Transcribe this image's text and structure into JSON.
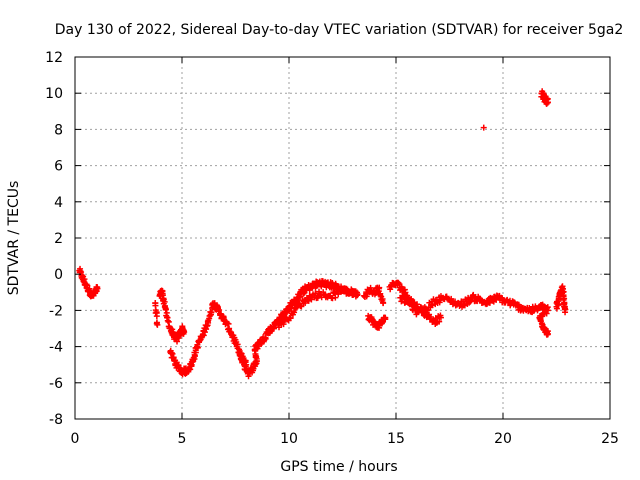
{
  "chart_data": {
    "type": "scatter",
    "title": "Day 130 of 2022, Sidereal Day-to-day VTEC variation (SDTVAR) for receiver 5ga2",
    "xlabel": "GPS time / hours",
    "ylabel": "SDTVAR / TECUs",
    "xlim": [
      0,
      25
    ],
    "ylim": [
      -8,
      12
    ],
    "x_ticks": [
      0,
      5,
      10,
      15,
      20,
      25
    ],
    "y_ticks": [
      -8,
      -6,
      -4,
      -2,
      0,
      2,
      4,
      6,
      8,
      10,
      12
    ],
    "grid": true,
    "marker": "+",
    "series_color": "#ff0000",
    "trace_points": [
      [
        0.2,
        0.2
      ],
      [
        0.35,
        -0.2
      ],
      [
        0.5,
        -0.6
      ],
      [
        0.65,
        -0.9
      ],
      [
        0.8,
        -1.2
      ],
      [
        0.95,
        -1.0
      ],
      [
        1.05,
        -0.8
      ],
      [
        3.75,
        -1.6
      ],
      [
        3.85,
        -2.8
      ],
      [
        3.95,
        -1.2
      ],
      [
        4.05,
        -0.9
      ],
      [
        4.15,
        -1.4
      ],
      [
        4.3,
        -2.4
      ],
      [
        4.45,
        -3.0
      ],
      [
        4.6,
        -3.4
      ],
      [
        4.75,
        -3.6
      ],
      [
        4.9,
        -3.3
      ],
      [
        5.0,
        -3.0
      ],
      [
        5.1,
        -3.2
      ],
      [
        4.45,
        -4.3
      ],
      [
        4.65,
        -4.8
      ],
      [
        4.85,
        -5.2
      ],
      [
        5.05,
        -5.4
      ],
      [
        5.25,
        -5.3
      ],
      [
        5.45,
        -5.0
      ],
      [
        5.55,
        -4.6
      ],
      [
        5.7,
        -4.0
      ],
      [
        5.9,
        -3.5
      ],
      [
        6.1,
        -3.0
      ],
      [
        6.3,
        -2.3
      ],
      [
        6.45,
        -1.6
      ],
      [
        6.6,
        -1.8
      ],
      [
        6.8,
        -2.2
      ],
      [
        7.0,
        -2.6
      ],
      [
        7.2,
        -3.0
      ],
      [
        7.4,
        -3.5
      ],
      [
        7.6,
        -4.1
      ],
      [
        7.8,
        -4.6
      ],
      [
        8.0,
        -5.0
      ],
      [
        7.7,
        -4.5
      ],
      [
        7.9,
        -5.0
      ],
      [
        8.1,
        -5.5
      ],
      [
        8.3,
        -5.2
      ],
      [
        8.5,
        -4.8
      ],
      [
        8.4,
        -4.2
      ],
      [
        8.6,
        -3.8
      ],
      [
        8.8,
        -3.6
      ],
      [
        9.0,
        -3.2
      ],
      [
        9.2,
        -3.0
      ],
      [
        9.4,
        -2.7
      ],
      [
        9.6,
        -2.4
      ],
      [
        9.8,
        -2.2
      ],
      [
        10.0,
        -1.8
      ],
      [
        10.2,
        -1.6
      ],
      [
        10.4,
        -1.3
      ],
      [
        10.6,
        -1.0
      ],
      [
        10.8,
        -0.8
      ],
      [
        11.0,
        -0.7
      ],
      [
        11.2,
        -0.6
      ],
      [
        11.4,
        -0.5
      ],
      [
        11.6,
        -0.5
      ],
      [
        11.8,
        -0.6
      ],
      [
        12.0,
        -0.6
      ],
      [
        12.2,
        -0.7
      ],
      [
        12.4,
        -0.8
      ],
      [
        12.6,
        -0.9
      ],
      [
        12.8,
        -1.0
      ],
      [
        13.0,
        -1.0
      ],
      [
        13.2,
        -1.1
      ],
      [
        9.5,
        -2.8
      ],
      [
        9.9,
        -2.5
      ],
      [
        10.3,
        -1.9
      ],
      [
        10.7,
        -1.5
      ],
      [
        11.1,
        -1.2
      ],
      [
        11.5,
        -1.1
      ],
      [
        11.9,
        -1.2
      ],
      [
        12.3,
        -1.1
      ],
      [
        13.5,
        -1.2
      ],
      [
        13.8,
        -0.9
      ],
      [
        14.0,
        -1.0
      ],
      [
        14.2,
        -0.8
      ],
      [
        14.4,
        -1.6
      ],
      [
        13.7,
        -2.3
      ],
      [
        13.9,
        -2.6
      ],
      [
        14.1,
        -2.9
      ],
      [
        14.3,
        -2.7
      ],
      [
        14.5,
        -2.4
      ],
      [
        14.7,
        -0.7
      ],
      [
        15.0,
        -0.5
      ],
      [
        15.3,
        -0.8
      ],
      [
        15.6,
        -1.3
      ],
      [
        15.9,
        -1.7
      ],
      [
        16.2,
        -2.0
      ],
      [
        16.5,
        -2.3
      ],
      [
        16.8,
        -2.6
      ],
      [
        17.1,
        -2.4
      ],
      [
        15.2,
        -1.3
      ],
      [
        15.6,
        -1.6
      ],
      [
        16.0,
        -2.1
      ],
      [
        16.4,
        -1.9
      ],
      [
        16.8,
        -1.5
      ],
      [
        17.2,
        -1.3
      ],
      [
        17.6,
        -1.5
      ],
      [
        18.0,
        -1.7
      ],
      [
        18.3,
        -1.5
      ],
      [
        18.6,
        -1.3
      ],
      [
        18.9,
        -1.4
      ],
      [
        19.2,
        -1.6
      ],
      [
        19.5,
        -1.4
      ],
      [
        19.8,
        -1.3
      ],
      [
        20.1,
        -1.5
      ],
      [
        20.4,
        -1.6
      ],
      [
        20.7,
        -1.8
      ],
      [
        21.0,
        -1.9
      ],
      [
        21.3,
        -2.0
      ],
      [
        21.6,
        -1.9
      ],
      [
        21.9,
        -1.8
      ],
      [
        22.1,
        -2.0
      ],
      [
        21.7,
        -2.4
      ],
      [
        21.85,
        -2.8
      ],
      [
        22.0,
        -3.1
      ],
      [
        22.1,
        -3.3
      ],
      [
        22.5,
        -1.8
      ],
      [
        22.6,
        -1.4
      ],
      [
        22.7,
        -1.0
      ],
      [
        22.8,
        -0.8
      ],
      [
        22.85,
        -1.6
      ],
      [
        22.9,
        -2.1
      ],
      [
        19.1,
        8.1
      ],
      [
        21.8,
        10.0
      ],
      [
        21.9,
        9.8
      ],
      [
        22.0,
        9.6
      ],
      [
        22.1,
        9.5
      ]
    ]
  }
}
